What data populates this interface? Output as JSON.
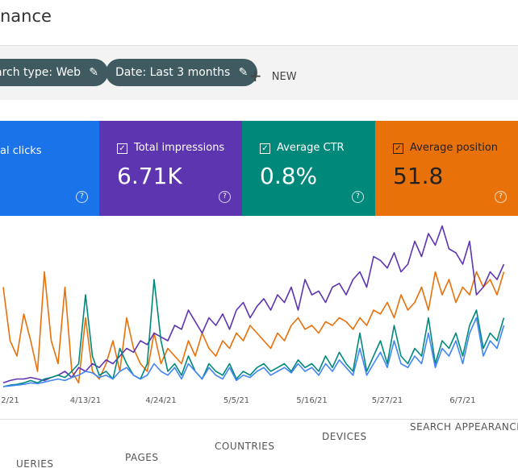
{
  "header": {
    "title": "nance"
  },
  "filters": [
    "arch type: Web",
    "Date: Last 3 months"
  ],
  "new_button": "NEW",
  "cards": [
    {
      "label": "al clicks"
    },
    {
      "label": "Total impressions",
      "value": "6.71K"
    },
    {
      "label": "Average CTR",
      "value": "0.8%"
    },
    {
      "label": "Average position",
      "value": "51.8"
    }
  ],
  "chart_data": {
    "type": "line",
    "categories": [
      null,
      "2/21",
      null,
      null,
      null,
      null,
      null,
      null,
      null,
      null,
      null,
      null,
      "4/13/21",
      null,
      null,
      null,
      null,
      null,
      null,
      null,
      null,
      null,
      null,
      "4/24/21",
      null,
      null,
      null,
      null,
      null,
      null,
      null,
      null,
      null,
      null,
      "5/5/21",
      null,
      null,
      null,
      null,
      null,
      null,
      null,
      null,
      null,
      null,
      "5/16/21",
      null,
      null,
      null,
      null,
      null,
      null,
      null,
      null,
      null,
      null,
      "5/27/21",
      null,
      null,
      null,
      null,
      null,
      null,
      null,
      null,
      null,
      null,
      "6/7/21",
      null,
      null,
      null,
      null,
      null,
      null
    ],
    "series": [
      {
        "color": "#e8710a",
        "values": [
          130,
          60,
          40,
          95,
          60,
          20,
          150,
          60,
          30,
          130,
          20,
          5,
          90,
          20,
          10,
          30,
          60,
          20,
          90,
          50,
          30,
          20,
          70,
          30,
          50,
          40,
          30,
          60,
          40,
          70,
          50,
          40,
          60,
          50,
          70,
          60,
          80,
          70,
          60,
          50,
          70,
          60,
          80,
          90,
          75,
          80,
          70,
          85,
          80,
          90,
          85,
          75,
          90,
          80,
          100,
          95,
          110,
          90,
          120,
          100,
          110,
          130,
          100,
          150,
          120,
          140,
          110,
          130,
          120,
          150,
          130,
          140,
          120,
          150
        ]
      },
      {
        "color": "#5e35b1",
        "values": [
          5,
          8,
          10,
          10,
          12,
          10,
          8,
          12,
          15,
          20,
          12,
          25,
          20,
          30,
          25,
          35,
          30,
          40,
          50,
          45,
          60,
          55,
          70,
          65,
          60,
          80,
          75,
          100,
          85,
          70,
          90,
          80,
          95,
          75,
          100,
          110,
          90,
          105,
          115,
          100,
          120,
          110,
          130,
          100,
          140,
          120,
          125,
          110,
          130,
          135,
          120,
          140,
          150,
          130,
          170,
          165,
          155,
          175,
          150,
          160,
          190,
          170,
          200,
          185,
          210,
          180,
          175,
          160,
          190,
          120,
          130,
          150,
          140,
          160
        ]
      },
      {
        "color": "#00897b",
        "values": [
          0,
          2,
          3,
          5,
          8,
          5,
          10,
          12,
          15,
          12,
          20,
          30,
          120,
          40,
          15,
          20,
          10,
          50,
          30,
          15,
          10,
          30,
          140,
          60,
          20,
          30,
          15,
          40,
          20,
          10,
          30,
          20,
          15,
          30,
          10,
          20,
          15,
          25,
          30,
          20,
          25,
          30,
          20,
          35,
          25,
          30,
          20,
          40,
          25,
          45,
          30,
          20,
          70,
          20,
          40,
          60,
          30,
          80,
          40,
          30,
          50,
          40,
          90,
          30,
          60,
          50,
          70,
          40,
          80,
          100,
          50,
          70,
          60,
          90
        ]
      },
      {
        "color": "#4285f4",
        "values": [
          0,
          1,
          2,
          3,
          5,
          4,
          6,
          8,
          10,
          8,
          12,
          15,
          20,
          18,
          12,
          15,
          10,
          20,
          25,
          15,
          10,
          15,
          30,
          20,
          15,
          25,
          10,
          30,
          20,
          10,
          25,
          15,
          10,
          25,
          8,
          15,
          12,
          20,
          25,
          15,
          20,
          25,
          18,
          30,
          20,
          25,
          15,
          30,
          20,
          35,
          25,
          15,
          50,
          15,
          30,
          45,
          25,
          60,
          30,
          25,
          40,
          30,
          70,
          25,
          50,
          40,
          60,
          30,
          70,
          90,
          40,
          60,
          50,
          80
        ]
      }
    ]
  },
  "tabs": [
    "UERIES",
    "PAGES",
    "COUNTRIES",
    "DEVICES",
    "SEARCH APPEARANCE"
  ]
}
